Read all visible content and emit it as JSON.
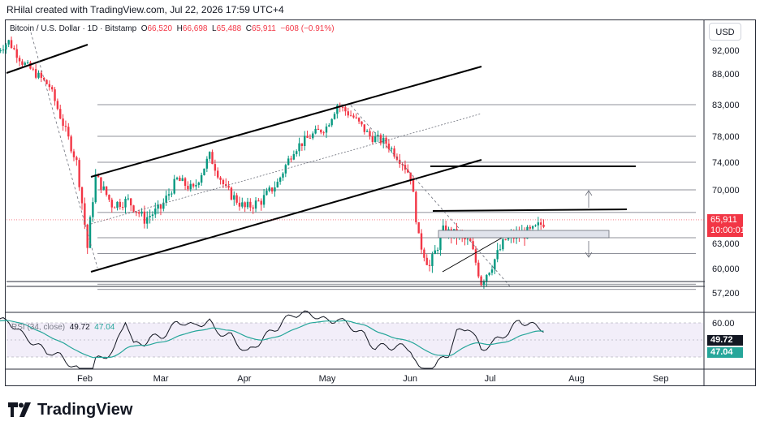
{
  "header": {
    "caption": "RHilal created with TradingView.com, Jul 22, 2026 17:59 UTC+4"
  },
  "legend": {
    "symbol": "Bitcoin / U.S. Dollar · 1D · Bitstamp",
    "o_label": "O",
    "o": "66,520",
    "h_label": "H",
    "h": "66,698",
    "l_label": "L",
    "l": "65,488",
    "c_label": "C",
    "c": "65,911",
    "change": "−608 (−0.91%)"
  },
  "currency": "USD",
  "last_price": {
    "value": "65,911",
    "countdown": "10:00:01",
    "color": "#f23645"
  },
  "rsi": {
    "label": "RSI (34, close)",
    "value": "49.72",
    "ma_value": "47.04",
    "line_color": "#131722",
    "ma_color": "#26a69a",
    "band_color": "#ede7f6"
  },
  "brand": {
    "name": "TradingView"
  },
  "colors": {
    "up": "#089981",
    "down": "#f23645"
  },
  "chart_data": {
    "type": "candlestick",
    "title": "Bitcoin / U.S. Dollar · 1D · Bitstamp",
    "x_ticks": [
      "Feb",
      "Mar",
      "Apr",
      "May",
      "Jun",
      "Jul",
      "Aug",
      "Sep"
    ],
    "y_ticks": [
      57200,
      60000,
      63000,
      66000,
      70000,
      74000,
      78000,
      83000,
      88000,
      92000
    ],
    "y_tick_labels": [
      "57,200",
      "60,000",
      "63,000",
      "66,000",
      "70,000",
      "74,000",
      "78,000",
      "83,000",
      "88,000",
      "92,000"
    ],
    "ylim": [
      55500,
      97000
    ],
    "series_close_path": [
      [
        "2026-01-01",
        92000
      ],
      [
        "2026-01-05",
        93500
      ],
      [
        "2026-01-10",
        90000
      ],
      [
        "2026-01-15",
        88000
      ],
      [
        "2026-01-20",
        86000
      ],
      [
        "2026-01-25",
        80000
      ],
      [
        "2026-01-30",
        74000
      ],
      [
        "2026-02-03",
        62500
      ],
      [
        "2026-02-06",
        72000
      ],
      [
        "2026-02-12",
        68000
      ],
      [
        "2026-02-18",
        68500
      ],
      [
        "2026-02-24",
        66000
      ],
      [
        "2026-03-02",
        67500
      ],
      [
        "2026-03-08",
        71500
      ],
      [
        "2026-03-14",
        70000
      ],
      [
        "2026-03-20",
        75000
      ],
      [
        "2026-03-26",
        70000
      ],
      [
        "2026-04-02",
        67500
      ],
      [
        "2026-04-08",
        68500
      ],
      [
        "2026-04-14",
        71000
      ],
      [
        "2026-04-20",
        76000
      ],
      [
        "2026-04-26",
        78000
      ],
      [
        "2026-05-02",
        79500
      ],
      [
        "2026-05-06",
        83000
      ],
      [
        "2026-05-12",
        81000
      ],
      [
        "2026-05-18",
        78000
      ],
      [
        "2026-05-24",
        77000
      ],
      [
        "2026-05-30",
        74000
      ],
      [
        "2026-06-02",
        72000
      ],
      [
        "2026-06-05",
        63500
      ],
      [
        "2026-06-09",
        60200
      ],
      [
        "2026-06-14",
        64500
      ],
      [
        "2026-06-19",
        64000
      ],
      [
        "2026-06-24",
        63000
      ],
      [
        "2026-06-28",
        58500
      ],
      [
        "2026-07-02",
        60500
      ],
      [
        "2026-07-07",
        63500
      ],
      [
        "2026-07-12",
        64000
      ],
      [
        "2026-07-17",
        64500
      ],
      [
        "2026-07-22",
        65911
      ]
    ],
    "horizontal_levels": [
      83000,
      78000,
      74000,
      70000,
      66900,
      63700,
      61800,
      58200,
      57600
    ],
    "rsi_ticks": [
      60.0
    ],
    "rsi_tick_labels": [
      "60.00"
    ]
  }
}
